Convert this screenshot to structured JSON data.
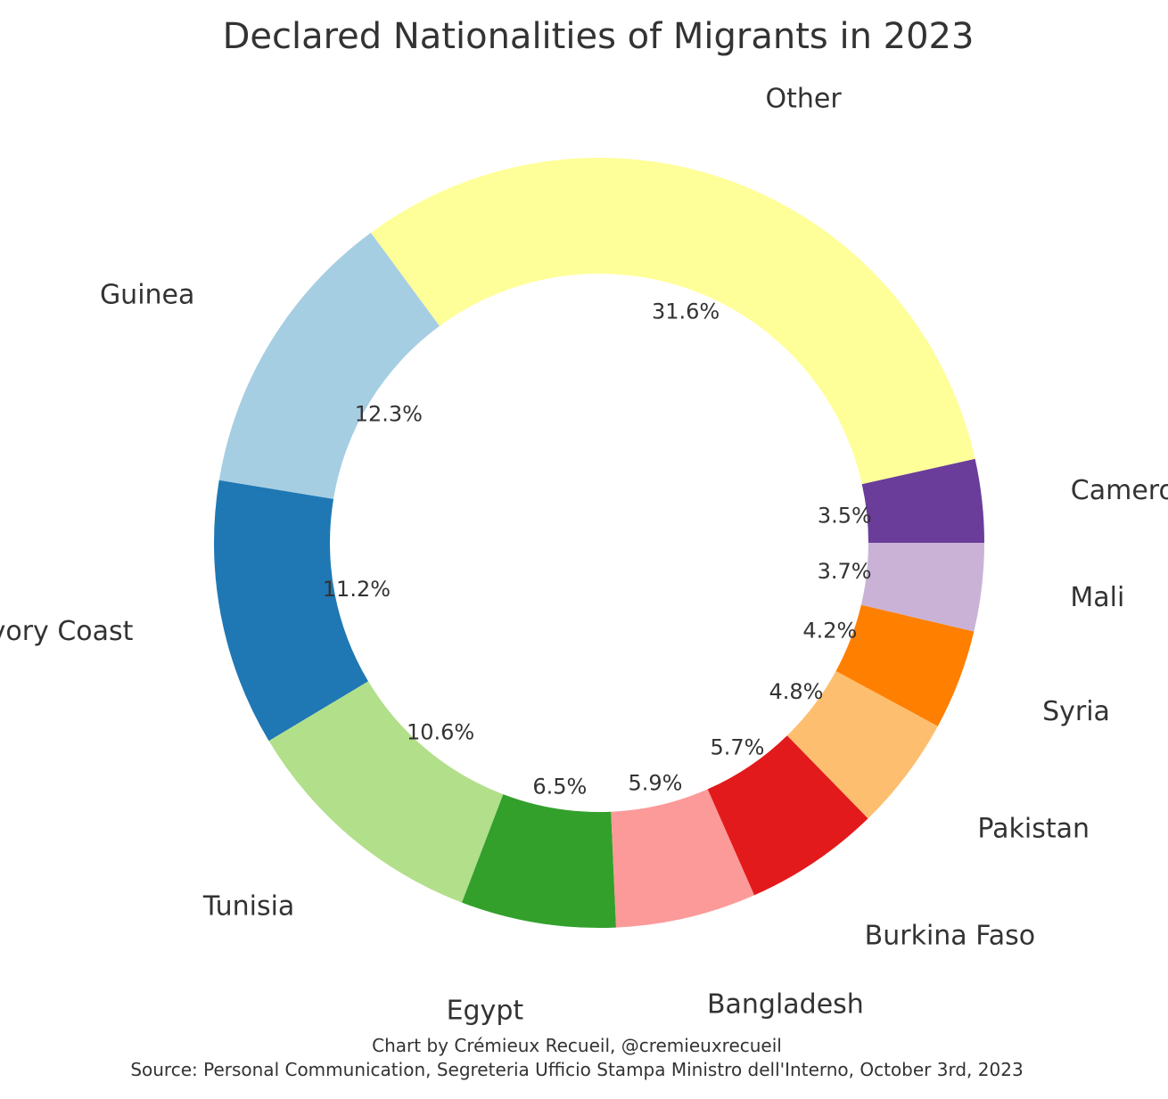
{
  "chart_data": {
    "type": "pie",
    "variant": "donut",
    "title": "Declared Nationalities of Migrants in 2023",
    "start_angle_deg": 0,
    "direction": "counterclockwise",
    "slices": [
      {
        "label": "Cameroon",
        "pct_label": "3.5%",
        "value": 3.5,
        "color": "#6a3d9a"
      },
      {
        "label": "Other",
        "pct_label": "31.6%",
        "value": 31.6,
        "color": "#ffff99"
      },
      {
        "label": "Guinea",
        "pct_label": "12.3%",
        "value": 12.3,
        "color": "#a6cee3"
      },
      {
        "label": "Ivory Coast",
        "pct_label": "11.2%",
        "value": 11.2,
        "color": "#1f78b4"
      },
      {
        "label": "Tunisia",
        "pct_label": "10.6%",
        "value": 10.6,
        "color": "#b2df8a"
      },
      {
        "label": "Egypt",
        "pct_label": "6.5%",
        "value": 6.5,
        "color": "#33a02c"
      },
      {
        "label": "Bangladesh",
        "pct_label": "5.9%",
        "value": 5.9,
        "color": "#fb9a99"
      },
      {
        "label": "Burkina Faso",
        "pct_label": "5.7%",
        "value": 5.7,
        "color": "#e31a1c"
      },
      {
        "label": "Pakistan",
        "pct_label": "4.8%",
        "value": 4.8,
        "color": "#fdbf6f"
      },
      {
        "label": "Syria",
        "pct_label": "4.2%",
        "value": 4.2,
        "color": "#ff7f00"
      },
      {
        "label": "Mali",
        "pct_label": "3.7%",
        "value": 3.7,
        "color": "#cab2d6"
      }
    ],
    "caption_line1": "Chart by Crémieux Recueil, @cremieuxrecueil",
    "caption_line2": "Source: Personal Communication, Segreteria Ufficio Stampa Ministro dell'Interno, October 3rd, 2023"
  }
}
